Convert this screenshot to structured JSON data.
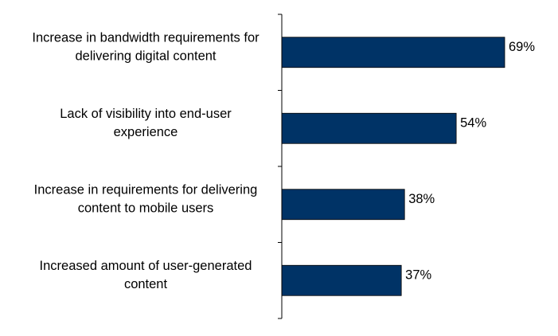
{
  "chart_data": {
    "type": "bar",
    "orientation": "horizontal",
    "categories": [
      [
        "Increase in bandwidth requirements for",
        "delivering digital content"
      ],
      [
        "Lack of visibility into end-user",
        "experience"
      ],
      [
        "Increase in requirements for delivering",
        "content to mobile users"
      ],
      [
        "Increased amount of user-generated",
        "content"
      ]
    ],
    "values": [
      69,
      54,
      38,
      37
    ],
    "value_labels": [
      "69%",
      "54%",
      "38%",
      "37%"
    ],
    "xlim": [
      0,
      100
    ],
    "grid": false,
    "legend": "none",
    "bar_color": "#003366",
    "title": "",
    "xlabel": "",
    "ylabel": ""
  }
}
